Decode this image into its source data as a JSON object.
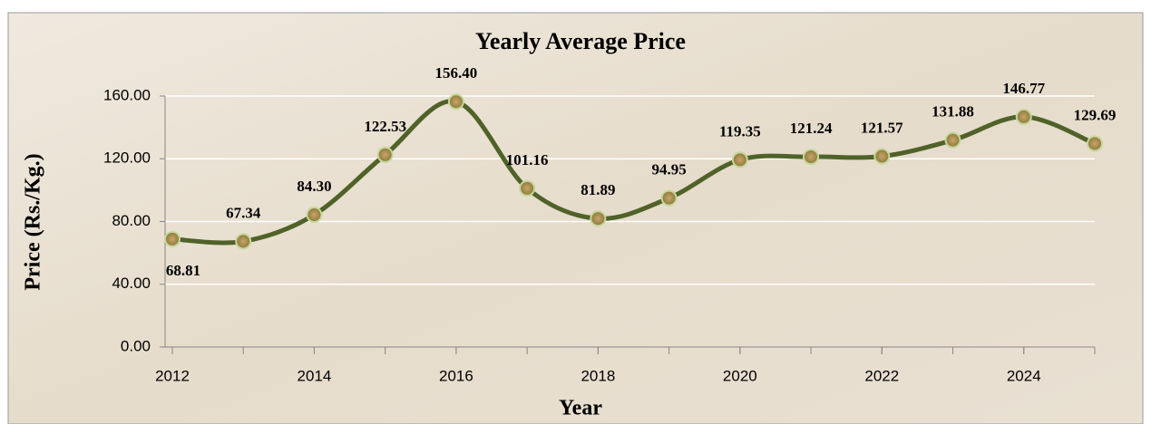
{
  "chart_data": {
    "type": "line",
    "title": "Yearly Average Price",
    "x_label": "Year",
    "y_label": "Price (Rs./Kg.)",
    "x": [
      2012,
      2013,
      2014,
      2015,
      2016,
      2017,
      2018,
      2019,
      2020,
      2021,
      2022,
      2023,
      2024,
      2025
    ],
    "series": [
      {
        "name": "Yearly Average Price",
        "color": "#4f6228",
        "values": [
          68.81,
          67.34,
          84.3,
          122.53,
          156.4,
          101.16,
          81.89,
          94.95,
          119.35,
          121.24,
          121.57,
          131.88,
          146.77,
          129.69
        ],
        "value_labels": [
          "68.81",
          "67.34",
          "84.30",
          "122.53",
          "156.40",
          "101.16",
          "81.89",
          "94.95",
          "119.35",
          "121.24",
          "121.57",
          "131.88",
          "146.77",
          "129.69"
        ]
      }
    ],
    "xlim": [
      2012,
      2025
    ],
    "xticks": [
      2012,
      2014,
      2016,
      2018,
      2020,
      2022,
      2024
    ],
    "ylim": [
      0,
      160
    ],
    "yticks": [
      {
        "value": 0,
        "label": "0.00"
      },
      {
        "value": 40,
        "label": "40.00"
      },
      {
        "value": 80,
        "label": "80.00"
      },
      {
        "value": 120,
        "label": "120.00"
      },
      {
        "value": 160,
        "label": "160.00"
      }
    ],
    "grid": true
  }
}
